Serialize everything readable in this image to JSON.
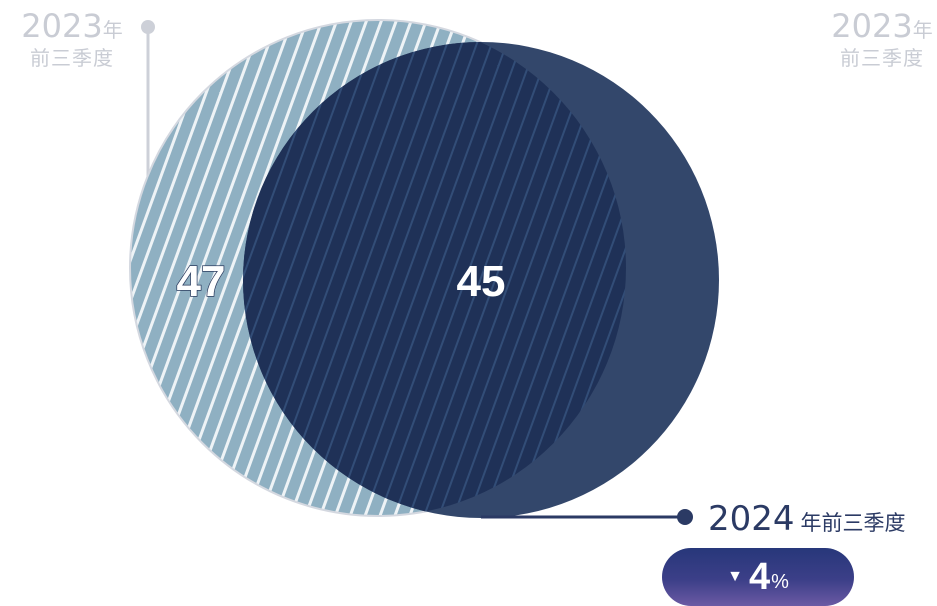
{
  "chart_data": {
    "type": "venn",
    "sets": [
      {
        "label_year": "2023",
        "label_year_suffix": "年",
        "label_period": "前三季度",
        "value": 47,
        "color": "#8fb0c2",
        "pattern": "diagonal-stripes"
      },
      {
        "label_year": "2024",
        "label_year_suffix": "年前三季度",
        "value": 45,
        "color": "#33476b"
      }
    ],
    "overlap_color": "#1f3157",
    "change": {
      "direction": "down",
      "value": "4",
      "unit": "%"
    }
  },
  "labels": {
    "top_left_year": "2023",
    "top_left_suffix": "年",
    "top_left_period": "前三季度",
    "top_right_year": "2023",
    "top_right_suffix": "年",
    "top_right_period": "前三季度",
    "bottom_year": "2024",
    "bottom_period": "年前三季度"
  },
  "badge": {
    "arrow": "▼",
    "value": "4",
    "unit": "%"
  }
}
